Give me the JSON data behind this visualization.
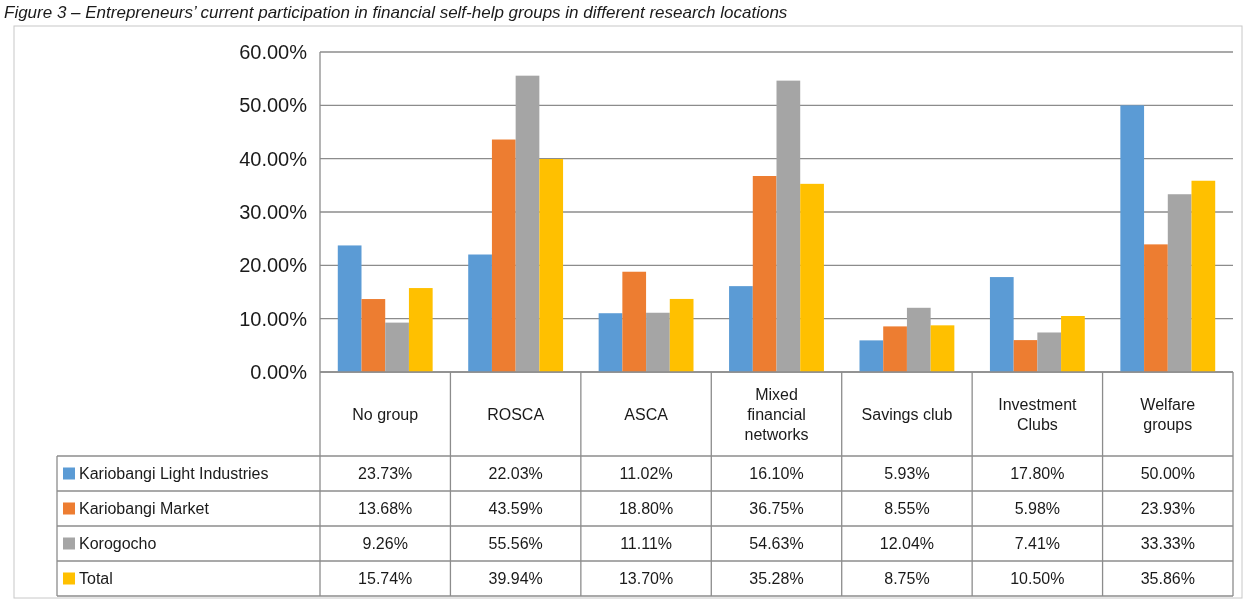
{
  "chart_data": {
    "type": "bar",
    "title": "Figure 3 – Entrepreneurs’ current participation in financial self-help groups in different research locations",
    "categories": [
      "No group",
      "ROSCA",
      "ASCA",
      "Mixed financial networks",
      "Savings club",
      "Investment Clubs",
      "Welfare groups"
    ],
    "series": [
      {
        "name": "Kariobangi Light Industries",
        "color": "#5b9bd5",
        "values": [
          23.73,
          22.03,
          11.02,
          16.1,
          5.93,
          17.8,
          50.0
        ],
        "value_labels": [
          "23.73%",
          "22.03%",
          "11.02%",
          "16.10%",
          "5.93%",
          "17.80%",
          "50.00%"
        ]
      },
      {
        "name": "Kariobangi Market",
        "color": "#ed7d31",
        "values": [
          13.68,
          43.59,
          18.8,
          36.75,
          8.55,
          5.98,
          23.93
        ],
        "value_labels": [
          "13.68%",
          "43.59%",
          "18.80%",
          "36.75%",
          "8.55%",
          "5.98%",
          "23.93%"
        ]
      },
      {
        "name": "Korogocho",
        "color": "#a5a5a5",
        "values": [
          9.26,
          55.56,
          11.11,
          54.63,
          12.04,
          7.41,
          33.33
        ],
        "value_labels": [
          "9.26%",
          "55.56%",
          "11.11%",
          "54.63%",
          "12.04%",
          "7.41%",
          "33.33%"
        ]
      },
      {
        "name": "Total",
        "color": "#ffc000",
        "values": [
          15.74,
          39.94,
          13.7,
          35.28,
          8.75,
          10.5,
          35.86
        ],
        "value_labels": [
          "15.74%",
          "39.94%",
          "13.70%",
          "35.28%",
          "8.75%",
          "10.50%",
          "35.86%"
        ]
      }
    ],
    "ylim": [
      0,
      60
    ],
    "yticks": [
      {
        "value": 0,
        "label": "0.00%"
      },
      {
        "value": 10,
        "label": "10.00%"
      },
      {
        "value": 20,
        "label": "20.00%"
      },
      {
        "value": 30,
        "label": "30.00%"
      },
      {
        "value": 40,
        "label": "40.00%"
      },
      {
        "value": 50,
        "label": "50.00%"
      },
      {
        "value": 60,
        "label": "60.00%"
      }
    ],
    "grid": "y",
    "legend": "bottom left"
  }
}
